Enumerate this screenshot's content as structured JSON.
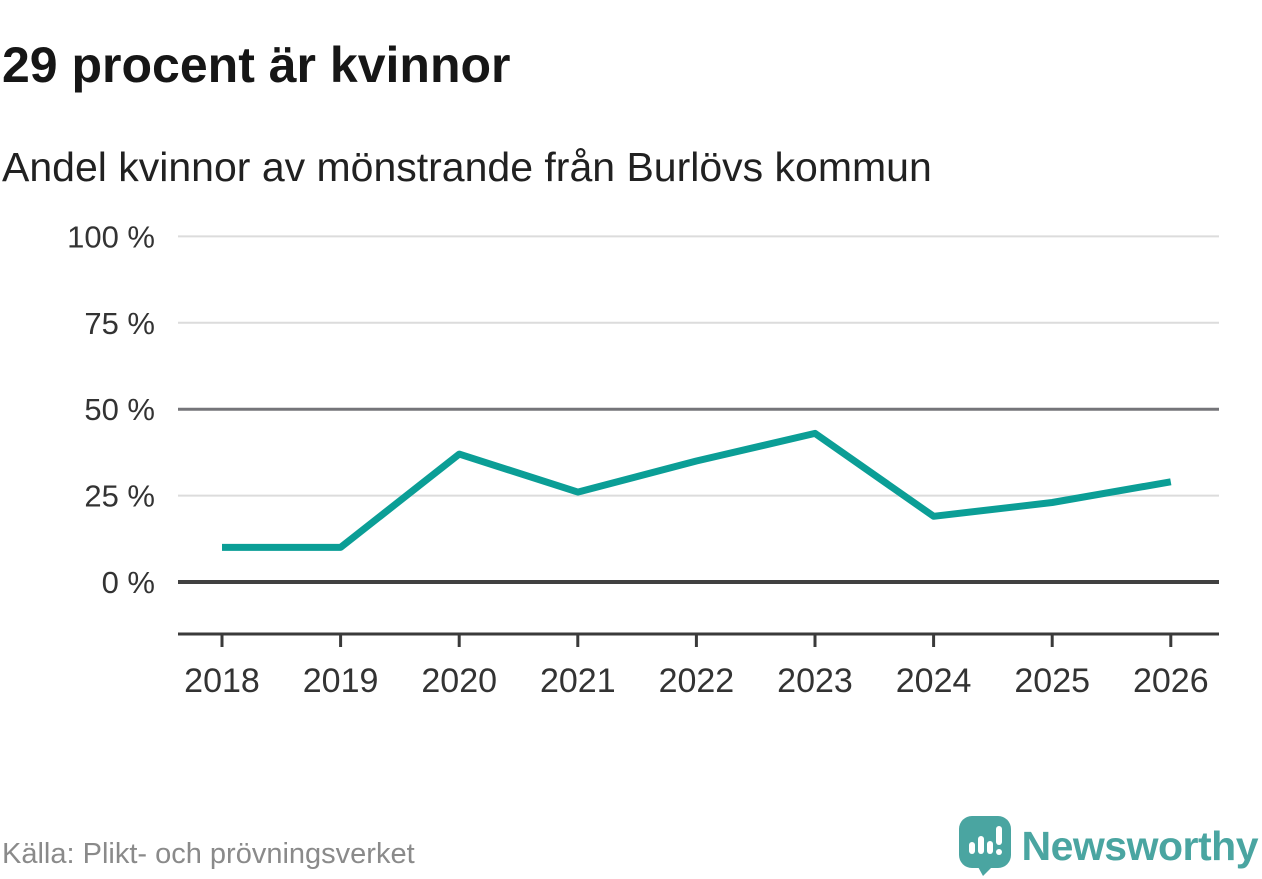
{
  "header": {
    "title": "29 procent är kvinnor",
    "subtitle": "Andel kvinnor av mönstrande från Burlövs kommun"
  },
  "footer": {
    "source": "Källa: Plikt- och prövningsverket",
    "brand": "Newsworthy"
  },
  "colors": {
    "line": "#0b9e96",
    "brand_teal": "#4aa5a1",
    "grid_light": "#dcdcdc",
    "grid_mid": "#757579",
    "axis_zero": "#414141",
    "axis_dark": "#3a3a3a",
    "tick_text": "#333333"
  },
  "chart_data": {
    "type": "line",
    "title": "29 procent är kvinnor",
    "subtitle": "Andel kvinnor av mönstrande från Burlövs kommun",
    "x": [
      2018,
      2019,
      2020,
      2021,
      2022,
      2023,
      2024,
      2025,
      2026
    ],
    "xtick_labels": [
      "2018",
      "2019",
      "2020",
      "2021",
      "2022",
      "2023",
      "2024",
      "2025",
      "2026"
    ],
    "series": [
      {
        "name": "Andel kvinnor av mönstrande",
        "color": "#0b9e96",
        "values": [
          10,
          10,
          37,
          26,
          35,
          43,
          19,
          23,
          29
        ]
      }
    ],
    "unit": "%",
    "ylim": [
      0,
      100
    ],
    "yticks": [
      0,
      25,
      50,
      75,
      100
    ],
    "ytick_labels": [
      "0 %",
      "25 %",
      "50 %",
      "75 %",
      "100 %"
    ],
    "grid": true,
    "legend": false,
    "source": "Källa: Plikt- och prövningsverket"
  }
}
